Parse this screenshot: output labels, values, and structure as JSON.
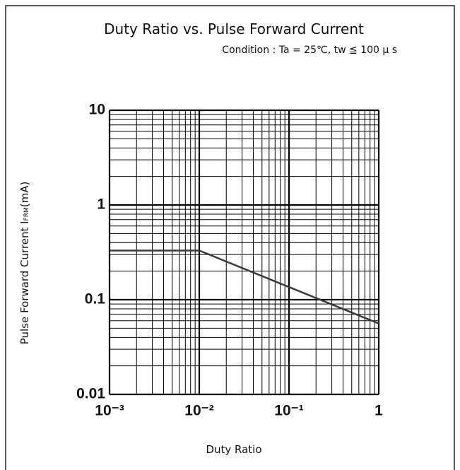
{
  "chart_data": {
    "type": "line",
    "title": "Duty Ratio vs. Pulse Forward Current",
    "subtitle": "Condition : Ta = 25℃, tw ≦ 100 μ s",
    "xlabel": "Duty Ratio",
    "ylabel": {
      "text": "Pulse Forward Current I",
      "subscript": "FRM",
      "suffix": "(mA)"
    },
    "x": [
      0.001,
      0.01,
      1
    ],
    "series": [
      {
        "color": "#3a3a3a",
        "values": [
          0.33,
          0.33,
          0.056
        ]
      }
    ],
    "xscale": "log",
    "yscale": "log",
    "xlim": [
      0.001,
      1
    ],
    "ylim": [
      0.01,
      10
    ],
    "xticks": [
      {
        "value": 0.001,
        "label": "10⁻³"
      },
      {
        "value": 0.01,
        "label": "10⁻²"
      },
      {
        "value": 0.1,
        "label": "10⁻¹"
      },
      1
    ],
    "yticks": [
      0.01,
      0.1,
      1,
      10
    ],
    "grid": true,
    "minor_grid": true
  }
}
